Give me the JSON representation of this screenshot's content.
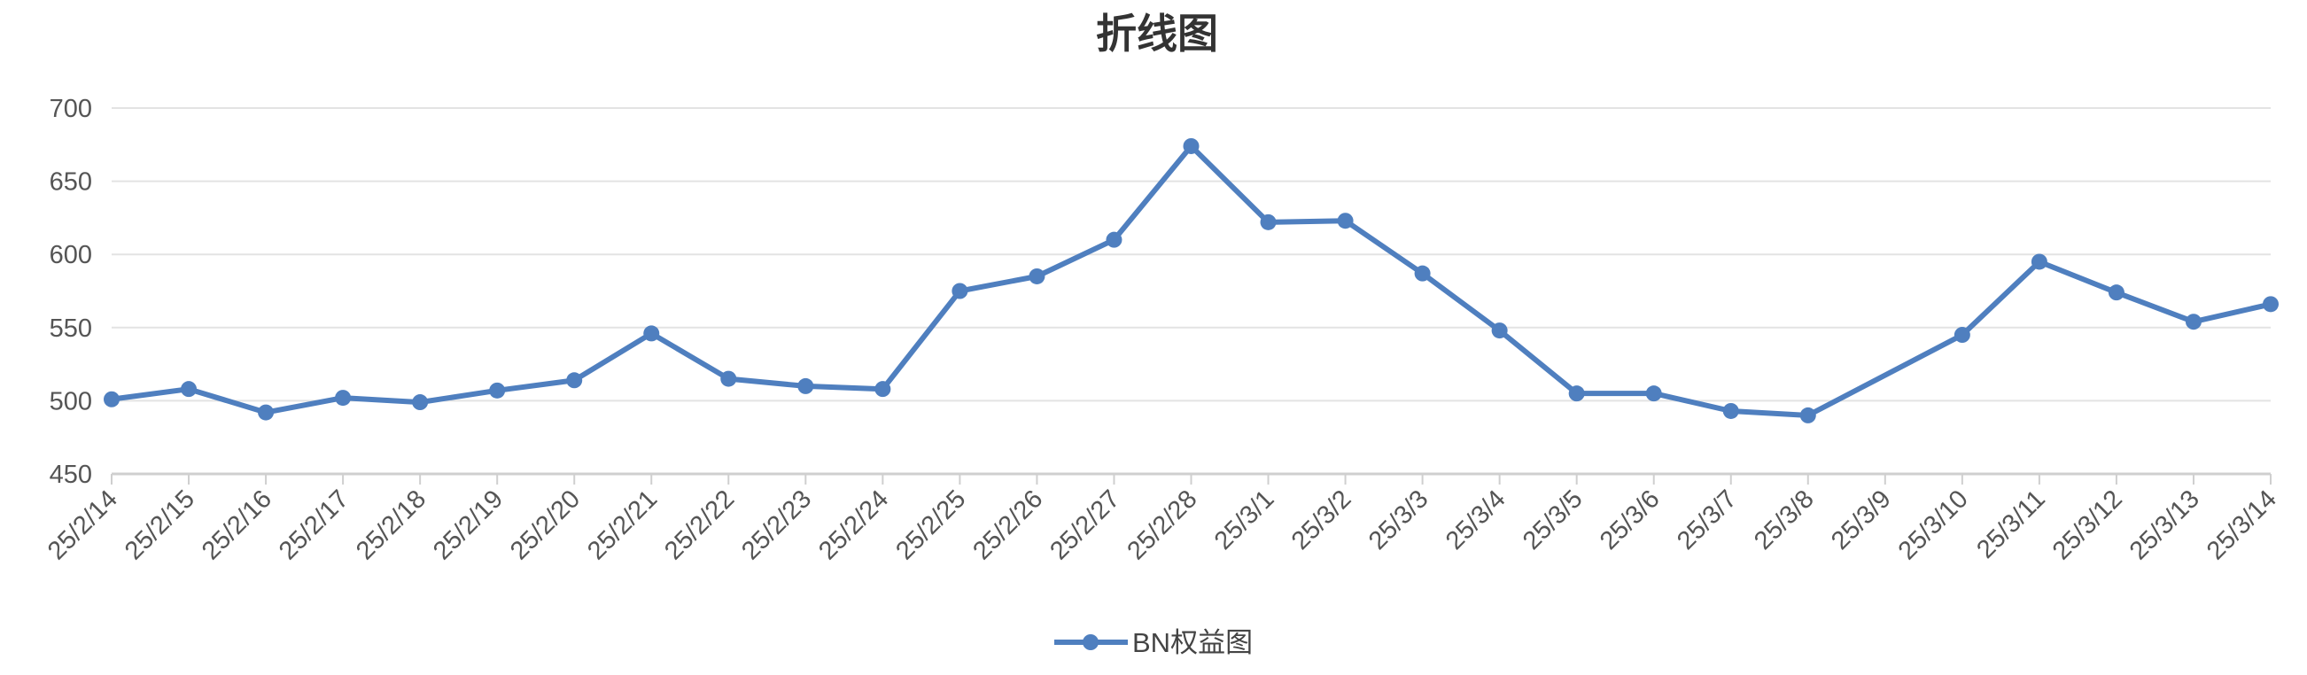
{
  "chart_data": {
    "type": "line",
    "title": "折线图",
    "xlabel": "",
    "ylabel": "",
    "ylim": [
      450,
      700
    ],
    "yticks": [
      450,
      500,
      550,
      600,
      650,
      700
    ],
    "grid": true,
    "legend_position": "bottom-center",
    "categories": [
      "25/2/14",
      "25/2/15",
      "25/2/16",
      "25/2/17",
      "25/2/18",
      "25/2/19",
      "25/2/20",
      "25/2/21",
      "25/2/22",
      "25/2/23",
      "25/2/24",
      "25/2/25",
      "25/2/26",
      "25/2/27",
      "25/2/28",
      "25/3/1",
      "25/3/2",
      "25/3/3",
      "25/3/4",
      "25/3/5",
      "25/3/6",
      "25/3/7",
      "25/3/8",
      "25/3/9",
      "25/3/10",
      "25/3/11",
      "25/3/12",
      "25/3/13",
      "25/3/14"
    ],
    "series": [
      {
        "name": "BN权益图",
        "color": "#4f7fbf",
        "values": [
          501,
          508,
          492,
          502,
          499,
          507,
          514,
          546,
          515,
          510,
          508,
          575,
          585,
          610,
          674,
          622,
          623,
          587,
          548,
          505,
          505,
          493,
          490,
          null,
          545,
          595,
          574,
          554,
          566
        ]
      }
    ]
  }
}
